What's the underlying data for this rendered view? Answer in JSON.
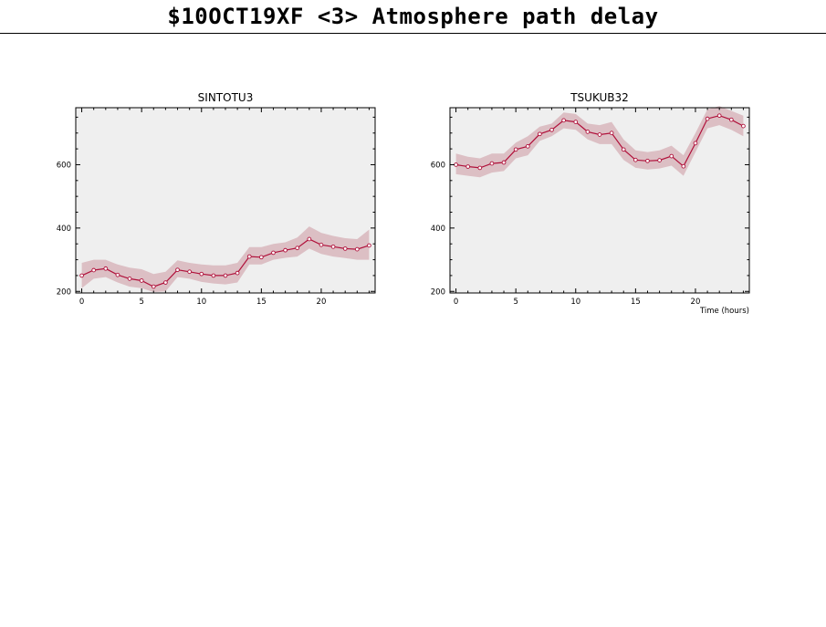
{
  "page_title": "$10OCT19XF <3>  Atmosphere path delay",
  "colors": {
    "line": "#b0103a",
    "band": "#dcbfc4",
    "plot_bg": "#efefef",
    "axis": "#000000"
  },
  "chart_data": [
    {
      "type": "line",
      "title": "SINTOTU3",
      "xlabel": "",
      "ylabel": "",
      "xlim": [
        -0.5,
        24.5
      ],
      "ylim": [
        195,
        780
      ],
      "x_ticks": [
        0,
        5,
        10,
        15,
        20
      ],
      "x_tick_labels": [
        "0",
        "5",
        "10",
        "15",
        "20"
      ],
      "y_ticks": [
        200,
        400,
        600
      ],
      "y_tick_labels": [
        "200",
        "400",
        "600"
      ],
      "grid": false,
      "x": [
        0,
        1,
        2,
        3,
        4,
        5,
        6,
        7,
        8,
        9,
        10,
        11,
        12,
        13,
        14,
        15,
        16,
        17,
        18,
        19,
        20,
        21,
        22,
        23,
        24
      ],
      "values": [
        250,
        267,
        272,
        252,
        240,
        234,
        215,
        228,
        268,
        262,
        255,
        250,
        250,
        258,
        310,
        308,
        322,
        330,
        337,
        365,
        347,
        341,
        335,
        333,
        345
      ],
      "band_upper": [
        290,
        300,
        300,
        285,
        275,
        270,
        255,
        262,
        298,
        290,
        285,
        282,
        282,
        290,
        340,
        340,
        350,
        355,
        370,
        405,
        385,
        375,
        368,
        365,
        395
      ],
      "band_lower": [
        210,
        240,
        245,
        228,
        215,
        210,
        198,
        200,
        245,
        240,
        230,
        225,
        222,
        228,
        285,
        285,
        300,
        306,
        310,
        335,
        318,
        310,
        305,
        300,
        300
      ]
    },
    {
      "type": "line",
      "title": "TSUKUB32",
      "xlabel": "Time (hours)",
      "ylabel": "",
      "xlim": [
        -0.5,
        24.5
      ],
      "ylim": [
        195,
        780
      ],
      "x_ticks": [
        0,
        5,
        10,
        15,
        20
      ],
      "x_tick_labels": [
        "0",
        "5",
        "10",
        "15",
        "20"
      ],
      "y_ticks": [
        200,
        400,
        600
      ],
      "y_tick_labels": [
        "200",
        "400",
        "600"
      ],
      "grid": false,
      "x": [
        0,
        1,
        2,
        3,
        4,
        5,
        6,
        7,
        8,
        9,
        10,
        11,
        12,
        13,
        14,
        15,
        16,
        17,
        18,
        19,
        20,
        21,
        22,
        23,
        24
      ],
      "values": [
        600,
        594,
        590,
        604,
        607,
        648,
        658,
        697,
        710,
        740,
        735,
        704,
        695,
        700,
        648,
        615,
        612,
        614,
        627,
        595,
        668,
        745,
        755,
        742,
        722
      ],
      "band_upper": [
        635,
        625,
        620,
        635,
        635,
        670,
        690,
        720,
        730,
        765,
        760,
        730,
        725,
        735,
        680,
        645,
        640,
        645,
        660,
        630,
        700,
        775,
        785,
        770,
        755
      ],
      "band_lower": [
        570,
        565,
        560,
        575,
        580,
        620,
        630,
        675,
        690,
        715,
        710,
        680,
        665,
        665,
        615,
        590,
        585,
        588,
        597,
        565,
        640,
        715,
        725,
        710,
        690
      ]
    }
  ]
}
